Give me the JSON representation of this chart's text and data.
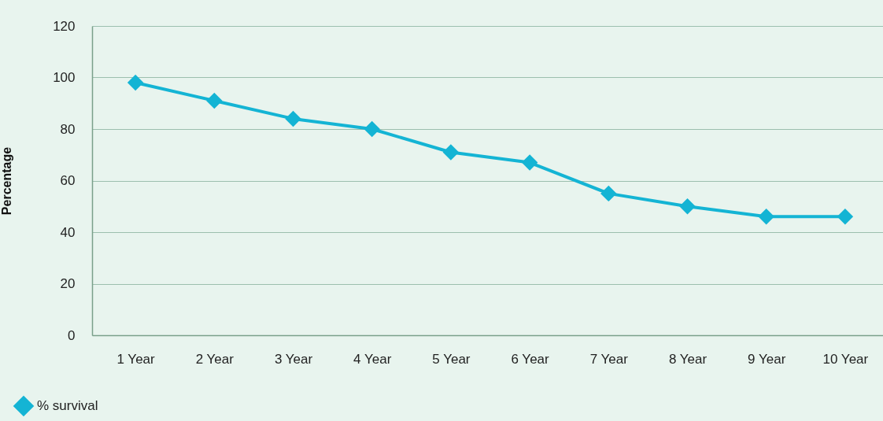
{
  "chart_data": {
    "type": "line",
    "ylabel": "Percentage",
    "categories": [
      "1 Year",
      "2 Year",
      "3 Year",
      "4 Year",
      "5 Year",
      "6 Year",
      "7 Year",
      "8 Year",
      "9 Year",
      "10 Year"
    ],
    "series": [
      {
        "name": "% survival",
        "color": "#14b4d4",
        "values": [
          98,
          91,
          84,
          80,
          71,
          67,
          55,
          50,
          46,
          46
        ]
      }
    ],
    "ylim": [
      0,
      120
    ],
    "yticks": [
      0,
      20,
      40,
      60,
      80,
      100,
      120
    ],
    "grid": "y",
    "legend": "bottom left",
    "marker": "diamond",
    "line_style": "solid"
  }
}
